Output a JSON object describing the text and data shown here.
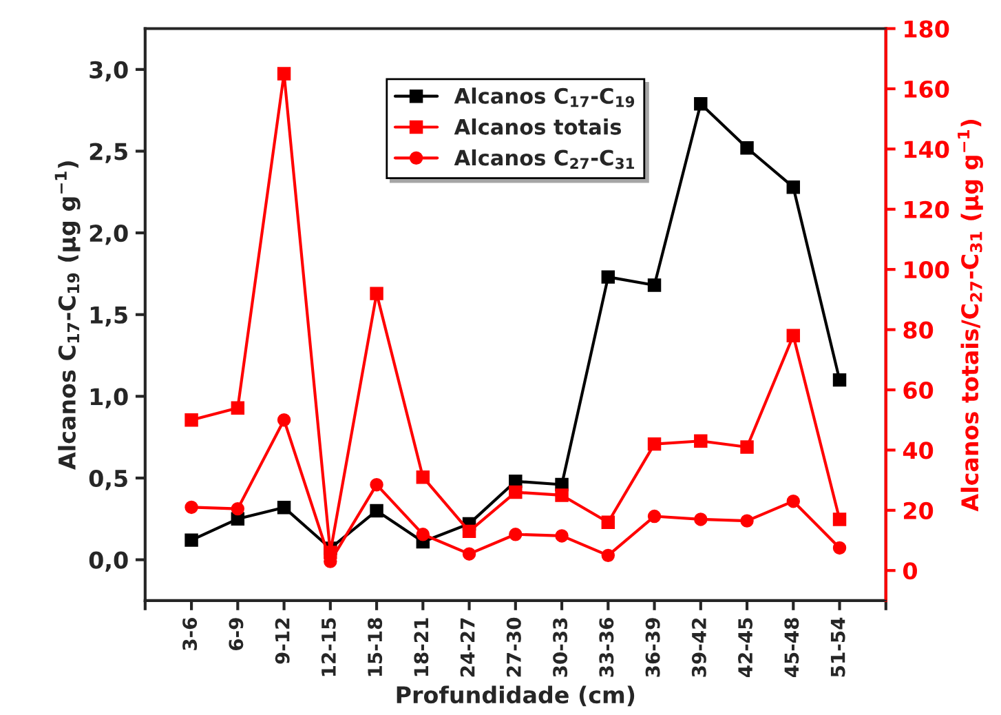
{
  "chart_data": {
    "type": "line",
    "xlabel": "Profundidade (cm)",
    "ylabel": "Alcanos C$_{17}$-C$_{19}$ (μg g$^{−1}$)",
    "y2label": "Alcanos totais/C$_{27}$-C$_{31}$ (μg g$^{−1}$)",
    "categories": [
      "3-6",
      "6-9",
      "9-12",
      "12-15",
      "15-18",
      "18-21",
      "24-27",
      "27-30",
      "30-33",
      "33-36",
      "36-39",
      "39-42",
      "42-45",
      "45-48",
      "51-54"
    ],
    "series": [
      {
        "name": "Alcanos C$_{17}$-C$_{19}$",
        "color": "#000000",
        "marker": "square",
        "values": [
          0.12,
          0.25,
          0.32,
          0.07,
          0.3,
          0.11,
          0.22,
          0.48,
          0.46,
          1.73,
          1.68,
          2.79,
          2.52,
          2.28,
          1.1
        ]
      },
      {
        "name": "Alcanos totais",
        "color": "#ff0000",
        "marker": "square",
        "axis": "y2",
        "values": [
          50,
          54,
          165,
          6,
          92,
          31,
          13,
          26,
          25,
          16,
          42,
          43,
          41,
          78,
          17
        ]
      },
      {
        "name": "Alcanos C$_{27}$-C$_{31}$",
        "color": "#ff0000",
        "marker": "circle",
        "axis": "y2",
        "values": [
          21,
          20.5,
          50,
          3,
          28.5,
          12,
          5.5,
          12,
          11.5,
          5,
          18,
          17,
          16.5,
          23,
          7.5
        ]
      }
    ],
    "ylim": [
      -0.25,
      3.25
    ],
    "yticks": [
      {
        "value": 0,
        "label": "0,0"
      },
      {
        "value": 0.5,
        "label": "0,5"
      },
      {
        "value": 1,
        "label": "1,0"
      },
      {
        "value": 1.5,
        "label": "1,5"
      },
      {
        "value": 2,
        "label": "2,0"
      },
      {
        "value": 2.5,
        "label": "2,5"
      },
      {
        "value": 3,
        "label": "3,0"
      }
    ],
    "y2lim": [
      -10,
      180
    ],
    "y2ticks": [
      0,
      20,
      40,
      60,
      80,
      100,
      120,
      140,
      160,
      180
    ],
    "grid": false,
    "legend": "top",
    "line_style": "solid"
  }
}
